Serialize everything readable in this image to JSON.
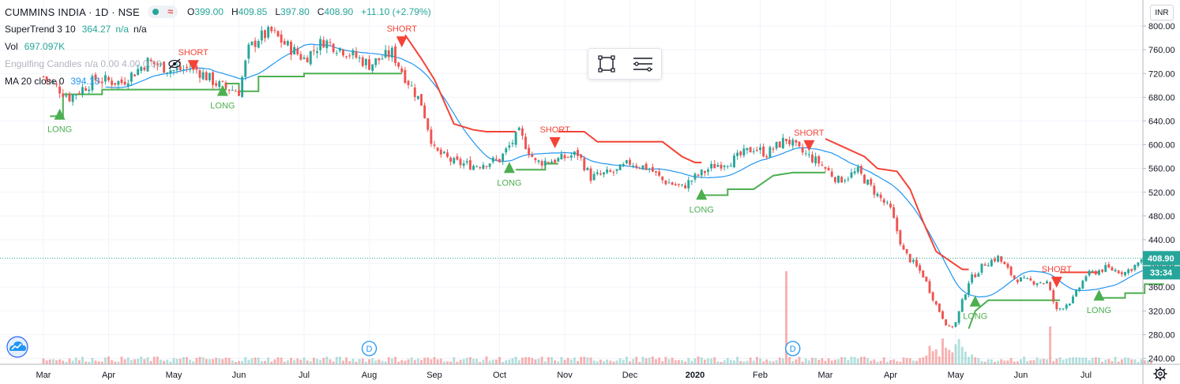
{
  "header": {
    "symbol": "CUMMINS INDIA · 1D · NSE",
    "ohlc": [
      {
        "label": "O",
        "value": "399.00"
      },
      {
        "label": "H",
        "value": "409.85"
      },
      {
        "label": "L",
        "value": "397.80"
      },
      {
        "label": "C",
        "value": "408.90"
      }
    ],
    "change": "+11.10 (+2.79%)"
  },
  "indicators": {
    "supertrend": {
      "name": "SuperTrend 3 10",
      "value": "364.27",
      "na1": "n/a",
      "na2": "n/a"
    },
    "volume": {
      "name": "Vol",
      "value": "697.097K"
    },
    "engulfing": {
      "name": "Engulfing Candles",
      "faint": "n/a 0.00 4.00 0.00"
    },
    "ma": {
      "name": "MA 20 close 0",
      "value": "394.13"
    }
  },
  "toolbar": {
    "icons": [
      "object-tree-icon",
      "layers-menu-icon"
    ]
  },
  "currency_label": "INR",
  "colors": {
    "up": "#26a69a",
    "down": "#ef5350",
    "supertrend_up": "#4caf50",
    "supertrend_down": "#f44336",
    "ma": "#2196f3",
    "grid": "#f0f3fa"
  },
  "chart_data": {
    "type": "candlestick",
    "ylim": [
      230,
      820
    ],
    "y_ticks": [
      240,
      280,
      320,
      360,
      400,
      440,
      480,
      520,
      560,
      600,
      640,
      680,
      720,
      760,
      800
    ],
    "x_ticks": [
      "Mar",
      "Apr",
      "May",
      "Jun",
      "Jul",
      "Aug",
      "Sep",
      "Oct",
      "Nov",
      "Dec",
      "2020",
      "Feb",
      "Mar",
      "Apr",
      "May",
      "Jun",
      "Jul"
    ],
    "last_price": "408.90",
    "countdown": "33:34",
    "close_anchors": [
      {
        "month": 0.0,
        "close": 715
      },
      {
        "month": 0.4,
        "close": 680
      },
      {
        "month": 0.8,
        "close": 710
      },
      {
        "month": 1.2,
        "close": 705
      },
      {
        "month": 1.6,
        "close": 740
      },
      {
        "month": 2.0,
        "close": 725
      },
      {
        "month": 2.3,
        "close": 730
      },
      {
        "month": 2.7,
        "close": 700
      },
      {
        "month": 3.0,
        "close": 690
      },
      {
        "month": 3.15,
        "close": 760
      },
      {
        "month": 3.3,
        "close": 780
      },
      {
        "month": 3.5,
        "close": 790
      },
      {
        "month": 3.7,
        "close": 770
      },
      {
        "month": 4.0,
        "close": 745
      },
      {
        "month": 4.3,
        "close": 775
      },
      {
        "month": 4.6,
        "close": 760
      },
      {
        "month": 5.0,
        "close": 735
      },
      {
        "month": 5.35,
        "close": 755
      },
      {
        "month": 5.55,
        "close": 715
      },
      {
        "month": 5.8,
        "close": 670
      },
      {
        "month": 6.0,
        "close": 590
      },
      {
        "month": 6.3,
        "close": 570
      },
      {
        "month": 6.6,
        "close": 565
      },
      {
        "month": 7.0,
        "close": 575
      },
      {
        "month": 7.3,
        "close": 620
      },
      {
        "month": 7.55,
        "close": 570
      },
      {
        "month": 7.9,
        "close": 575
      },
      {
        "month": 8.2,
        "close": 585
      },
      {
        "month": 8.4,
        "close": 545
      },
      {
        "month": 8.8,
        "close": 555
      },
      {
        "month": 9.0,
        "close": 570
      },
      {
        "month": 9.3,
        "close": 560
      },
      {
        "month": 9.5,
        "close": 540
      },
      {
        "month": 9.8,
        "close": 528
      },
      {
        "month": 10.0,
        "close": 545
      },
      {
        "month": 10.3,
        "close": 565
      },
      {
        "month": 10.6,
        "close": 575
      },
      {
        "month": 10.9,
        "close": 595
      },
      {
        "month": 11.1,
        "close": 585
      },
      {
        "month": 11.4,
        "close": 610
      },
      {
        "month": 11.6,
        "close": 590
      },
      {
        "month": 11.9,
        "close": 570
      },
      {
        "month": 12.2,
        "close": 540
      },
      {
        "month": 12.5,
        "close": 555
      },
      {
        "month": 12.8,
        "close": 515
      },
      {
        "month": 13.0,
        "close": 490
      },
      {
        "month": 13.2,
        "close": 420
      },
      {
        "month": 13.5,
        "close": 380
      },
      {
        "month": 13.7,
        "close": 330
      },
      {
        "month": 13.9,
        "close": 290
      },
      {
        "month": 14.0,
        "close": 300
      },
      {
        "month": 14.2,
        "close": 370
      },
      {
        "month": 14.45,
        "close": 400
      },
      {
        "month": 14.65,
        "close": 410
      },
      {
        "month": 14.9,
        "close": 375
      },
      {
        "month": 15.1,
        "close": 370
      },
      {
        "month": 15.4,
        "close": 368
      },
      {
        "month": 15.55,
        "close": 320
      },
      {
        "month": 15.8,
        "close": 340
      },
      {
        "month": 16.0,
        "close": 380
      },
      {
        "month": 16.3,
        "close": 392
      },
      {
        "month": 16.6,
        "close": 385
      },
      {
        "month": 16.8,
        "close": 400
      },
      {
        "month": 17.0,
        "close": 408.9
      }
    ],
    "supertrend": [
      {
        "dir": "up",
        "points": [
          [
            0.1,
            648
          ],
          [
            0.3,
            648
          ],
          [
            0.3,
            685
          ],
          [
            0.9,
            685
          ],
          [
            0.9,
            693
          ],
          [
            2.8,
            693
          ],
          [
            2.8,
            703
          ],
          [
            3.0,
            703
          ],
          [
            3.0,
            690
          ],
          [
            3.3,
            690
          ],
          [
            3.3,
            715
          ],
          [
            4.0,
            715
          ],
          [
            4.0,
            720
          ],
          [
            5.5,
            720
          ]
        ]
      },
      {
        "dir": "down",
        "points": [
          [
            5.55,
            785
          ],
          [
            5.8,
            745
          ],
          [
            6.0,
            710
          ],
          [
            6.3,
            635
          ],
          [
            6.6,
            625
          ],
          [
            6.8,
            622
          ],
          [
            7.25,
            622
          ]
        ]
      },
      {
        "dir": "up",
        "points": [
          [
            7.25,
            558
          ],
          [
            7.7,
            558
          ],
          [
            7.7,
            568
          ],
          [
            7.9,
            568
          ]
        ]
      },
      {
        "dir": "down",
        "points": [
          [
            7.9,
            622
          ],
          [
            8.3,
            622
          ],
          [
            8.5,
            605
          ],
          [
            9.5,
            605
          ],
          [
            9.8,
            580
          ],
          [
            10.0,
            570
          ],
          [
            10.1,
            570
          ]
        ]
      },
      {
        "dir": "up",
        "points": [
          [
            10.1,
            515
          ],
          [
            10.5,
            515
          ],
          [
            10.5,
            525
          ],
          [
            10.9,
            525
          ],
          [
            11.2,
            548
          ],
          [
            11.5,
            553
          ],
          [
            12.0,
            553
          ]
        ]
      },
      {
        "dir": "down",
        "points": [
          [
            12.0,
            610
          ],
          [
            12.3,
            595
          ],
          [
            12.6,
            580
          ],
          [
            12.8,
            560
          ],
          [
            13.1,
            555
          ],
          [
            13.3,
            525
          ],
          [
            13.5,
            470
          ],
          [
            13.7,
            420
          ],
          [
            13.9,
            405
          ],
          [
            14.1,
            390
          ],
          [
            14.2,
            390
          ]
        ]
      },
      {
        "dir": "up",
        "points": [
          [
            14.2,
            290
          ],
          [
            14.3,
            320
          ],
          [
            14.5,
            338
          ],
          [
            15.6,
            338
          ]
        ]
      },
      {
        "dir": "down",
        "points": [
          [
            15.6,
            385
          ],
          [
            16.1,
            385
          ],
          [
            16.2,
            385
          ]
        ]
      },
      {
        "dir": "up",
        "points": [
          [
            16.25,
            342
          ],
          [
            16.6,
            342
          ],
          [
            16.6,
            350
          ],
          [
            16.9,
            350
          ],
          [
            16.9,
            365
          ],
          [
            17.2,
            365
          ]
        ]
      }
    ],
    "signals": [
      {
        "label": "LONG",
        "month": 0.25,
        "price": 645,
        "dir": "long"
      },
      {
        "label": "SHORT",
        "month": 2.3,
        "price": 740,
        "dir": "short"
      },
      {
        "label": "LONG",
        "month": 2.75,
        "price": 685,
        "dir": "long"
      },
      {
        "label": "SHORT",
        "month": 5.5,
        "price": 780,
        "dir": "short"
      },
      {
        "label": "LONG",
        "month": 7.15,
        "price": 555,
        "dir": "long"
      },
      {
        "label": "SHORT",
        "month": 7.85,
        "price": 610,
        "dir": "short"
      },
      {
        "label": "LONG",
        "month": 10.1,
        "price": 510,
        "dir": "long"
      },
      {
        "label": "SHORT",
        "month": 11.75,
        "price": 605,
        "dir": "short"
      },
      {
        "label": "LONG",
        "month": 14.3,
        "price": 330,
        "dir": "long"
      },
      {
        "label": "SHORT",
        "month": 15.55,
        "price": 375,
        "dir": "short"
      },
      {
        "label": "LONG",
        "month": 16.2,
        "price": 340,
        "dir": "long"
      }
    ],
    "events": [
      {
        "label": "D",
        "month": 5.0
      },
      {
        "label": "D",
        "month": 11.5
      }
    ]
  }
}
